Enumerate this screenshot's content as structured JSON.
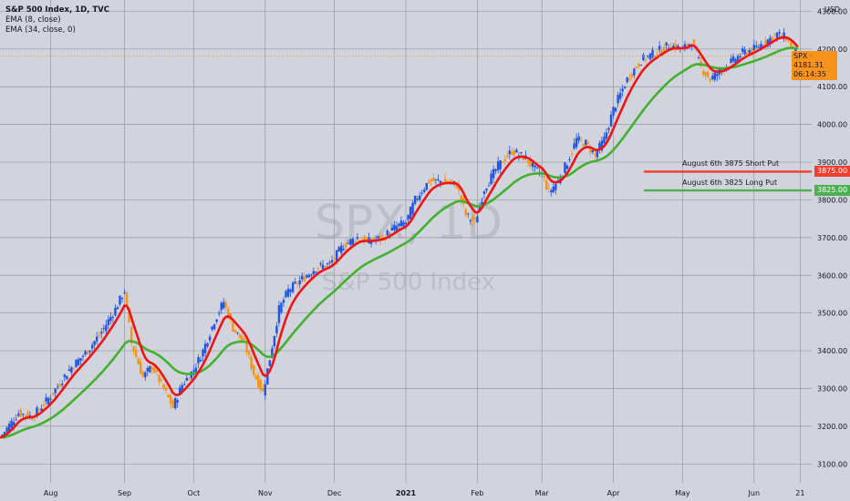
{
  "legend": {
    "title": "S&P 500 Index, 1D, TVC",
    "ema_fast": "EMA (8, close)",
    "ema_slow": "EMA (34, close, 0)"
  },
  "watermark": {
    "symbol": "SPX, 1D",
    "name": "S&P 500 Index"
  },
  "currency": "USD",
  "last_price": {
    "symbol": "SPX",
    "value": "4181.31",
    "countdown": "06:14:35"
  },
  "annotations": [
    {
      "text": "August 6th 3875 Short Put",
      "level": 3875,
      "tag": "3875.00",
      "color": "#f23d2b"
    },
    {
      "text": "August 6th 3825 Long Put",
      "level": 3825,
      "tag": "3825.00",
      "color": "#4caf50"
    }
  ],
  "colors": {
    "up": "#1e53e5",
    "down": "#f7931a",
    "ema_fast": "#f01414",
    "ema_slow": "#43b12f",
    "bg": "#d1d4dc",
    "grid": "#9598a1"
  },
  "chart_data": {
    "type": "candlestick",
    "title": "S&P 500 Index, 1D, TVC",
    "ylim": [
      3050,
      4330
    ],
    "y_ticks": [
      3100,
      3200,
      3300,
      3400,
      3500,
      3600,
      3700,
      3800,
      3900,
      4000,
      4100,
      4200,
      4300
    ],
    "x_ticks": [
      {
        "label": "Aug",
        "day": 22
      },
      {
        "label": "Sep",
        "day": 54
      },
      {
        "label": "Oct",
        "day": 84
      },
      {
        "label": "Nov",
        "day": 115
      },
      {
        "label": "Dec",
        "day": 145
      },
      {
        "label": "2021",
        "day": 176
      },
      {
        "label": "Feb",
        "day": 207
      },
      {
        "label": "Mar",
        "day": 235
      },
      {
        "label": "Apr",
        "day": 266
      },
      {
        "label": "May",
        "day": 296
      },
      {
        "label": "Jun",
        "day": 327
      },
      {
        "label": "21",
        "day": 347
      }
    ],
    "x_range_days": [
      0,
      352
    ],
    "close_series": [
      {
        "day": 0,
        "close": 3170
      },
      {
        "day": 8,
        "close": 3235
      },
      {
        "day": 14,
        "close": 3225
      },
      {
        "day": 22,
        "close": 3280
      },
      {
        "day": 30,
        "close": 3350
      },
      {
        "day": 38,
        "close": 3400
      },
      {
        "day": 44,
        "close": 3450
      },
      {
        "day": 50,
        "close": 3510
      },
      {
        "day": 54,
        "close": 3560
      },
      {
        "day": 57,
        "close": 3420
      },
      {
        "day": 62,
        "close": 3330
      },
      {
        "day": 66,
        "close": 3360
      },
      {
        "day": 70,
        "close": 3310
      },
      {
        "day": 75,
        "close": 3250
      },
      {
        "day": 79,
        "close": 3310
      },
      {
        "day": 84,
        "close": 3350
      },
      {
        "day": 88,
        "close": 3400
      },
      {
        "day": 93,
        "close": 3480
      },
      {
        "day": 97,
        "close": 3530
      },
      {
        "day": 101,
        "close": 3460
      },
      {
        "day": 106,
        "close": 3420
      },
      {
        "day": 110,
        "close": 3340
      },
      {
        "day": 114,
        "close": 3290
      },
      {
        "day": 117,
        "close": 3380
      },
      {
        "day": 121,
        "close": 3510
      },
      {
        "day": 125,
        "close": 3560
      },
      {
        "day": 131,
        "close": 3590
      },
      {
        "day": 137,
        "close": 3620
      },
      {
        "day": 143,
        "close": 3630
      },
      {
        "day": 149,
        "close": 3680
      },
      {
        "day": 155,
        "close": 3700
      },
      {
        "day": 160,
        "close": 3690
      },
      {
        "day": 166,
        "close": 3700
      },
      {
        "day": 172,
        "close": 3730
      },
      {
        "day": 176,
        "close": 3740
      },
      {
        "day": 180,
        "close": 3800
      },
      {
        "day": 186,
        "close": 3850
      },
      {
        "day": 192,
        "close": 3850
      },
      {
        "day": 198,
        "close": 3840
      },
      {
        "day": 202,
        "close": 3760
      },
      {
        "day": 206,
        "close": 3740
      },
      {
        "day": 210,
        "close": 3830
      },
      {
        "day": 216,
        "close": 3890
      },
      {
        "day": 222,
        "close": 3930
      },
      {
        "day": 228,
        "close": 3910
      },
      {
        "day": 232,
        "close": 3880
      },
      {
        "day": 235,
        "close": 3870
      },
      {
        "day": 238,
        "close": 3820
      },
      {
        "day": 242,
        "close": 3850
      },
      {
        "day": 246,
        "close": 3900
      },
      {
        "day": 250,
        "close": 3960
      },
      {
        "day": 254,
        "close": 3950
      },
      {
        "day": 258,
        "close": 3920
      },
      {
        "day": 262,
        "close": 3960
      },
      {
        "day": 266,
        "close": 4040
      },
      {
        "day": 272,
        "close": 4120
      },
      {
        "day": 278,
        "close": 4170
      },
      {
        "day": 284,
        "close": 4190
      },
      {
        "day": 290,
        "close": 4210
      },
      {
        "day": 296,
        "close": 4200
      },
      {
        "day": 300,
        "close": 4220
      },
      {
        "day": 304,
        "close": 4150
      },
      {
        "day": 308,
        "close": 4120
      },
      {
        "day": 312,
        "close": 4140
      },
      {
        "day": 316,
        "close": 4160
      },
      {
        "day": 322,
        "close": 4190
      },
      {
        "day": 327,
        "close": 4200
      },
      {
        "day": 332,
        "close": 4220
      },
      {
        "day": 337,
        "close": 4240
      },
      {
        "day": 341,
        "close": 4230
      },
      {
        "day": 344,
        "close": 4200
      },
      {
        "day": 346,
        "close": 4181
      }
    ]
  }
}
